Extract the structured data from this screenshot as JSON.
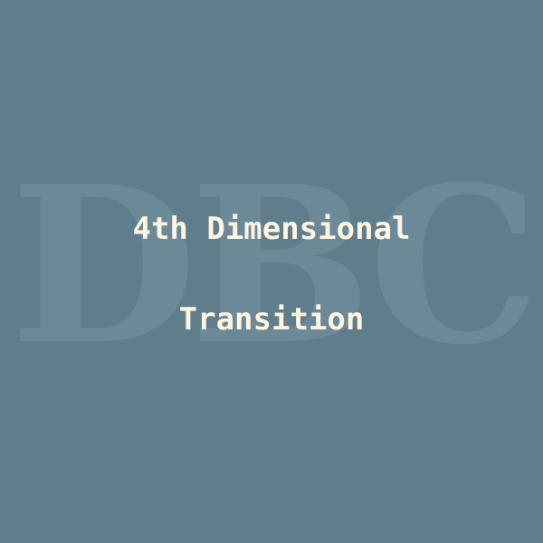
{
  "cover": {
    "watermark": "DBC",
    "title_line1": "4th Dimensional",
    "title_line2": "Transition"
  },
  "colors": {
    "background": "#607d8b",
    "watermark": "#6c8998",
    "title": "#fdf5e1"
  }
}
